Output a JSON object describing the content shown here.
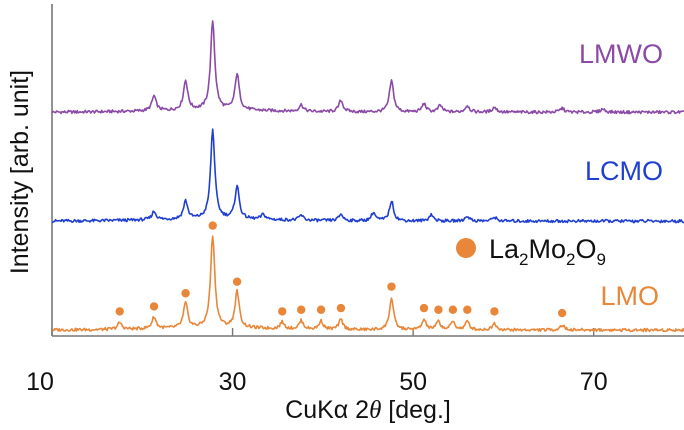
{
  "colors": {
    "LMWO": "#8a4aa6",
    "LCMO": "#1f3fd0",
    "LMO": "#e8873a",
    "axis": "#777777",
    "text": "#111111"
  },
  "chart_data": {
    "type": "line",
    "xlabel_prefix": "CuKα 2",
    "xlabel_symbol": "θ",
    "xlabel_suffix": " [deg.]",
    "ylabel": "Intensity [arb. unit]",
    "xlim": [
      10,
      80
    ],
    "xticks": [
      10,
      30,
      50,
      70
    ],
    "y_ticks_shown": false,
    "grid": false,
    "legend": {
      "marker": "circle",
      "color": "#e8873a",
      "parts": [
        "La",
        "2",
        "Mo",
        "2",
        "O",
        "9"
      ]
    },
    "series": [
      {
        "name": "LMWO",
        "color": "#8a4aa6",
        "offset": 0.66,
        "baseline": 0.0,
        "peaks": [
          {
            "x": 21.3,
            "h": 0.045
          },
          {
            "x": 24.8,
            "h": 0.09
          },
          {
            "x": 27.8,
            "h": 0.27
          },
          {
            "x": 30.5,
            "h": 0.11
          },
          {
            "x": 37.6,
            "h": 0.02
          },
          {
            "x": 42.0,
            "h": 0.035
          },
          {
            "x": 47.6,
            "h": 0.095
          },
          {
            "x": 51.2,
            "h": 0.025
          },
          {
            "x": 53.0,
            "h": 0.02
          },
          {
            "x": 56.0,
            "h": 0.02
          },
          {
            "x": 59.0,
            "h": 0.015
          },
          {
            "x": 66.5,
            "h": 0.012
          },
          {
            "x": 71.0,
            "h": 0.01
          }
        ]
      },
      {
        "name": "LCMO",
        "color": "#1f3fd0",
        "offset": 0.33,
        "baseline": 0.0,
        "peaks": [
          {
            "x": 21.3,
            "h": 0.025
          },
          {
            "x": 24.8,
            "h": 0.055
          },
          {
            "x": 27.8,
            "h": 0.27
          },
          {
            "x": 30.5,
            "h": 0.1
          },
          {
            "x": 33.4,
            "h": 0.015
          },
          {
            "x": 37.6,
            "h": 0.015
          },
          {
            "x": 42.0,
            "h": 0.02
          },
          {
            "x": 45.6,
            "h": 0.025
          },
          {
            "x": 47.6,
            "h": 0.06
          },
          {
            "x": 52.0,
            "h": 0.02
          },
          {
            "x": 56.0,
            "h": 0.015
          },
          {
            "x": 59.0,
            "h": 0.012
          }
        ]
      },
      {
        "name": "LMO",
        "color": "#e8873a",
        "offset": 0.0,
        "baseline": 0.0,
        "peaks": [
          {
            "x": 17.5,
            "h": 0.02
          },
          {
            "x": 21.3,
            "h": 0.035
          },
          {
            "x": 24.8,
            "h": 0.075
          },
          {
            "x": 27.8,
            "h": 0.28
          },
          {
            "x": 30.5,
            "h": 0.11
          },
          {
            "x": 35.5,
            "h": 0.02
          },
          {
            "x": 37.6,
            "h": 0.025
          },
          {
            "x": 39.8,
            "h": 0.025
          },
          {
            "x": 42.0,
            "h": 0.03
          },
          {
            "x": 47.6,
            "h": 0.095
          },
          {
            "x": 51.2,
            "h": 0.03
          },
          {
            "x": 52.8,
            "h": 0.025
          },
          {
            "x": 54.4,
            "h": 0.025
          },
          {
            "x": 56.0,
            "h": 0.025
          },
          {
            "x": 59.0,
            "h": 0.02
          },
          {
            "x": 66.5,
            "h": 0.015
          }
        ]
      }
    ],
    "markers": {
      "series": "LMO",
      "color": "#e8873a",
      "x": [
        17.5,
        21.3,
        24.8,
        27.8,
        30.5,
        35.5,
        37.6,
        39.8,
        42.0,
        47.6,
        51.2,
        52.8,
        54.4,
        56.0,
        59.0,
        66.5
      ]
    }
  }
}
